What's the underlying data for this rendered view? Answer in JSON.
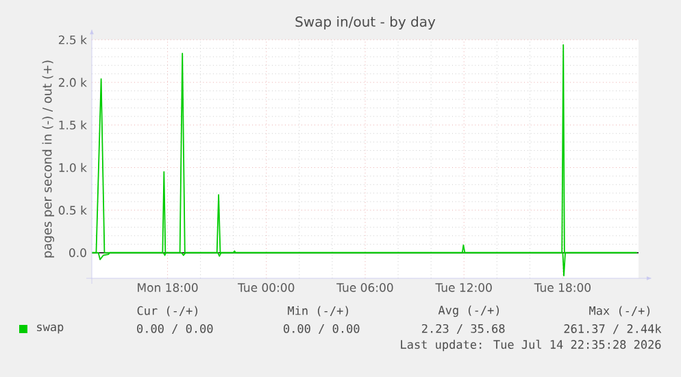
{
  "chart_data": {
    "type": "line",
    "title": "Swap in/out - by day",
    "ylabel": "pages per second in (-) / out (+)",
    "xlim": [
      "2026-07-13T13:24",
      "2026-07-14T22:36"
    ],
    "ylim": [
      -300,
      2500
    ],
    "xticks": [
      {
        "value": "2026-07-13T18:00",
        "label": "Mon 18:00"
      },
      {
        "value": "2026-07-14T00:00",
        "label": "Tue 00:00"
      },
      {
        "value": "2026-07-14T06:00",
        "label": "Tue 06:00"
      },
      {
        "value": "2026-07-14T12:00",
        "label": "Tue 12:00"
      },
      {
        "value": "2026-07-14T18:00",
        "label": "Tue 18:00"
      }
    ],
    "yticks": [
      {
        "value": 0,
        "label": "0.0"
      },
      {
        "value": 500,
        "label": "0.5 k"
      },
      {
        "value": 1000,
        "label": "1.0 k"
      },
      {
        "value": 1500,
        "label": "1.5 k"
      },
      {
        "value": 2000,
        "label": "2.0 k"
      },
      {
        "value": 2500,
        "label": "2.5 k"
      }
    ],
    "grid": true,
    "legend": "bottom left",
    "marker": "none",
    "line_style": "solid",
    "series": [
      {
        "name": "swap",
        "color": "#00cc00",
        "x": [
          "2026-07-13T13:24",
          "2026-07-13T13:40",
          "2026-07-13T13:58",
          "2026-07-13T14:10",
          "2026-07-13T17:42",
          "2026-07-13T17:47",
          "2026-07-13T17:52",
          "2026-07-13T18:45",
          "2026-07-13T18:54",
          "2026-07-13T19:03",
          "2026-07-13T21:00",
          "2026-07-13T21:06",
          "2026-07-13T21:12",
          "2026-07-13T21:59",
          "2026-07-13T22:04",
          "2026-07-13T22:08",
          "2026-07-14T11:54",
          "2026-07-14T11:58",
          "2026-07-14T12:03",
          "2026-07-14T17:57",
          "2026-07-14T18:02",
          "2026-07-14T18:06",
          "2026-07-14T22:30"
        ],
        "values": [
          0,
          0,
          2040,
          0,
          0,
          950,
          0,
          0,
          2340,
          0,
          0,
          680,
          0,
          0,
          20,
          0,
          0,
          90,
          0,
          0,
          2440,
          0,
          0
        ]
      },
      {
        "color": "#00cc00",
        "x": [
          "2026-07-13T13:24",
          "2026-07-13T13:48",
          "2026-07-13T13:54",
          "2026-07-13T14:06",
          "2026-07-13T14:24",
          "2026-07-13T14:30",
          "2026-07-13T17:45",
          "2026-07-13T17:50",
          "2026-07-13T17:54",
          "2026-07-13T18:51",
          "2026-07-13T18:58",
          "2026-07-13T19:06",
          "2026-07-13T21:03",
          "2026-07-13T21:09",
          "2026-07-13T21:15",
          "2026-07-14T18:00",
          "2026-07-14T18:04",
          "2026-07-14T18:09",
          "2026-07-14T22:30"
        ],
        "values": [
          0,
          0,
          -80,
          -30,
          -20,
          0,
          0,
          -30,
          0,
          0,
          -30,
          0,
          0,
          -40,
          0,
          0,
          -270,
          0,
          0
        ]
      }
    ],
    "ref_lines": [
      {
        "axis": "y",
        "value": 0,
        "color": "#000000"
      }
    ],
    "annotations": [
      "Cur (-/+)",
      "Min (-/+)",
      "Avg (-/+)",
      "Max (-/+)",
      "0.00 /  0.00",
      "0.00 /  0.00",
      "2.23 / 35.68",
      "261.37 /  2.44k",
      "Last update: Tue Jul 14 22:35:28 2026"
    ]
  }
}
